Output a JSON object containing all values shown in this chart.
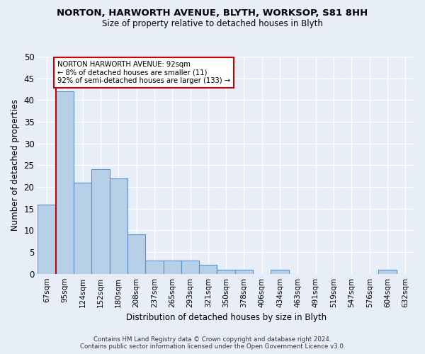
{
  "title": "NORTON, HARWORTH AVENUE, BLYTH, WORKSOP, S81 8HH",
  "subtitle": "Size of property relative to detached houses in Blyth",
  "xlabel": "Distribution of detached houses by size in Blyth",
  "ylabel": "Number of detached properties",
  "categories": [
    "67sqm",
    "95sqm",
    "124sqm",
    "152sqm",
    "180sqm",
    "208sqm",
    "237sqm",
    "265sqm",
    "293sqm",
    "321sqm",
    "350sqm",
    "378sqm",
    "406sqm",
    "434sqm",
    "463sqm",
    "491sqm",
    "519sqm",
    "547sqm",
    "576sqm",
    "604sqm",
    "632sqm"
  ],
  "values": [
    16,
    42,
    21,
    24,
    22,
    9,
    3,
    3,
    3,
    2,
    1,
    1,
    0,
    1,
    0,
    0,
    0,
    0,
    0,
    1,
    0
  ],
  "bar_color": "#b8cfe8",
  "bar_edge_color": "#5b8fc9",
  "marker_line_color": "#cc0000",
  "annotation_text": "NORTON HARWORTH AVENUE: 92sqm\n← 8% of detached houses are smaller (11)\n92% of semi-detached houses are larger (133) →",
  "annotation_box_color": "#ffffff",
  "annotation_box_edge_color": "#cc0000",
  "ylim": [
    0,
    50
  ],
  "yticks": [
    0,
    5,
    10,
    15,
    20,
    25,
    30,
    35,
    40,
    45,
    50
  ],
  "footer": "Contains HM Land Registry data © Crown copyright and database right 2024.\nContains public sector information licensed under the Open Government Licence v3.0.",
  "background_color": "#e8eef8",
  "grid_color": "#ffffff"
}
